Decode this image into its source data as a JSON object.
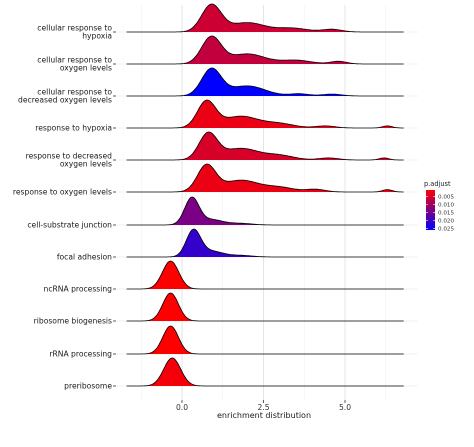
{
  "chart_data": {
    "type": "ridgeline",
    "xlabel": "enrichment distribution",
    "xlim": [
      -2.1,
      7.1
    ],
    "xticks": [
      0.0,
      2.5,
      5.0
    ],
    "xtick_labels": [
      "0.0",
      "2.5",
      "5.0"
    ],
    "grid": true,
    "legend_position": "right",
    "legend": {
      "title": "p.adjust",
      "ticks": [
        0.005,
        0.01,
        0.015,
        0.02,
        0.025
      ],
      "tick_labels": [
        "0.005",
        "0.010",
        "0.015",
        "0.020",
        "0.025"
      ],
      "range": [
        0.001,
        0.026
      ],
      "color_low": "#ff0000",
      "color_high": "#0000ff"
    },
    "ridges": [
      {
        "label": "cellular response to hypoxia",
        "p_adjust": 0.006,
        "peaks": [
          [
            0.9,
            0.3,
            1.0
          ],
          [
            2.0,
            0.55,
            0.35
          ],
          [
            3.4,
            0.45,
            0.14
          ],
          [
            4.6,
            0.3,
            0.1
          ]
        ]
      },
      {
        "label": "cellular response to oxygen levels",
        "p_adjust": 0.007,
        "peaks": [
          [
            0.9,
            0.3,
            1.0
          ],
          [
            2.0,
            0.55,
            0.38
          ],
          [
            3.5,
            0.45,
            0.14
          ],
          [
            4.8,
            0.25,
            0.1
          ]
        ]
      },
      {
        "label": "cellular response to decreased oxygen levels",
        "p_adjust": 0.026,
        "peaks": [
          [
            0.9,
            0.3,
            1.0
          ],
          [
            2.0,
            0.55,
            0.38
          ],
          [
            3.6,
            0.3,
            0.08
          ],
          [
            4.6,
            0.3,
            0.07
          ]
        ]
      },
      {
        "label": "response to hypoxia",
        "p_adjust": 0.003,
        "peaks": [
          [
            0.75,
            0.28,
            1.0
          ],
          [
            1.8,
            0.55,
            0.45
          ],
          [
            3.0,
            0.45,
            0.16
          ],
          [
            4.4,
            0.3,
            0.08
          ],
          [
            6.3,
            0.15,
            0.08
          ]
        ]
      },
      {
        "label": "response to decreased oxygen levels",
        "p_adjust": 0.005,
        "peaks": [
          [
            0.8,
            0.28,
            1.0
          ],
          [
            1.8,
            0.55,
            0.45
          ],
          [
            3.0,
            0.45,
            0.17
          ],
          [
            4.5,
            0.3,
            0.08
          ],
          [
            6.2,
            0.15,
            0.08
          ]
        ]
      },
      {
        "label": "response to oxygen levels",
        "p_adjust": 0.003,
        "peaks": [
          [
            0.75,
            0.28,
            1.0
          ],
          [
            1.8,
            0.55,
            0.45
          ],
          [
            3.0,
            0.45,
            0.17
          ],
          [
            4.1,
            0.3,
            0.1
          ],
          [
            6.3,
            0.15,
            0.09
          ]
        ]
      },
      {
        "label": "cell-substrate junction",
        "p_adjust": 0.014,
        "peaks": [
          [
            0.3,
            0.22,
            1.0
          ],
          [
            0.9,
            0.35,
            0.2
          ],
          [
            1.8,
            0.35,
            0.06
          ]
        ]
      },
      {
        "label": "focal adhesion",
        "p_adjust": 0.021,
        "peaks": [
          [
            0.35,
            0.22,
            1.0
          ],
          [
            0.9,
            0.35,
            0.22
          ],
          [
            1.8,
            0.35,
            0.06
          ]
        ]
      },
      {
        "label": "ncRNA processing",
        "p_adjust": 0.001,
        "peaks": [
          [
            -0.35,
            0.25,
            1.0
          ]
        ]
      },
      {
        "label": "ribosome biogenesis",
        "p_adjust": 0.001,
        "peaks": [
          [
            -0.35,
            0.24,
            1.0
          ]
        ]
      },
      {
        "label": "rRNA processing",
        "p_adjust": 0.001,
        "peaks": [
          [
            -0.35,
            0.24,
            1.0
          ]
        ]
      },
      {
        "label": "preribosome",
        "p_adjust": 0.002,
        "peaks": [
          [
            -0.3,
            0.26,
            1.0
          ]
        ]
      }
    ]
  }
}
